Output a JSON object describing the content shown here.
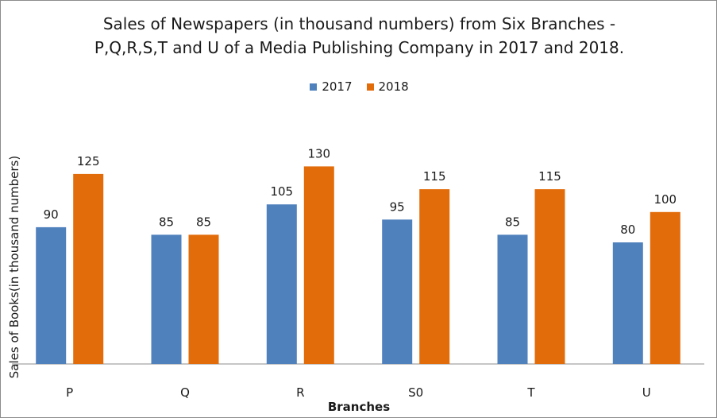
{
  "chart_data": {
    "type": "bar",
    "title_lines": [
      "Sales of Newspapers (in thousand numbers) from Six Branches -",
      "P,Q,R,S,T and U of a Media Publishing Company in 2017 and 2018."
    ],
    "xlabel": "Branches",
    "ylabel": "Sales of Books(in thousand numbers)",
    "categories": [
      "P",
      "Q",
      "R",
      "S0",
      "T",
      "U"
    ],
    "series": [
      {
        "name": "2017",
        "color": "#4f81bd",
        "values": [
          90,
          85,
          105,
          95,
          85,
          80
        ]
      },
      {
        "name": "2018",
        "color": "#e36c0a",
        "values": [
          125,
          85,
          130,
          115,
          115,
          100
        ]
      }
    ],
    "ylim": [
      0,
      160
    ],
    "grid": false,
    "data_labels": true,
    "legend_position": "top"
  }
}
